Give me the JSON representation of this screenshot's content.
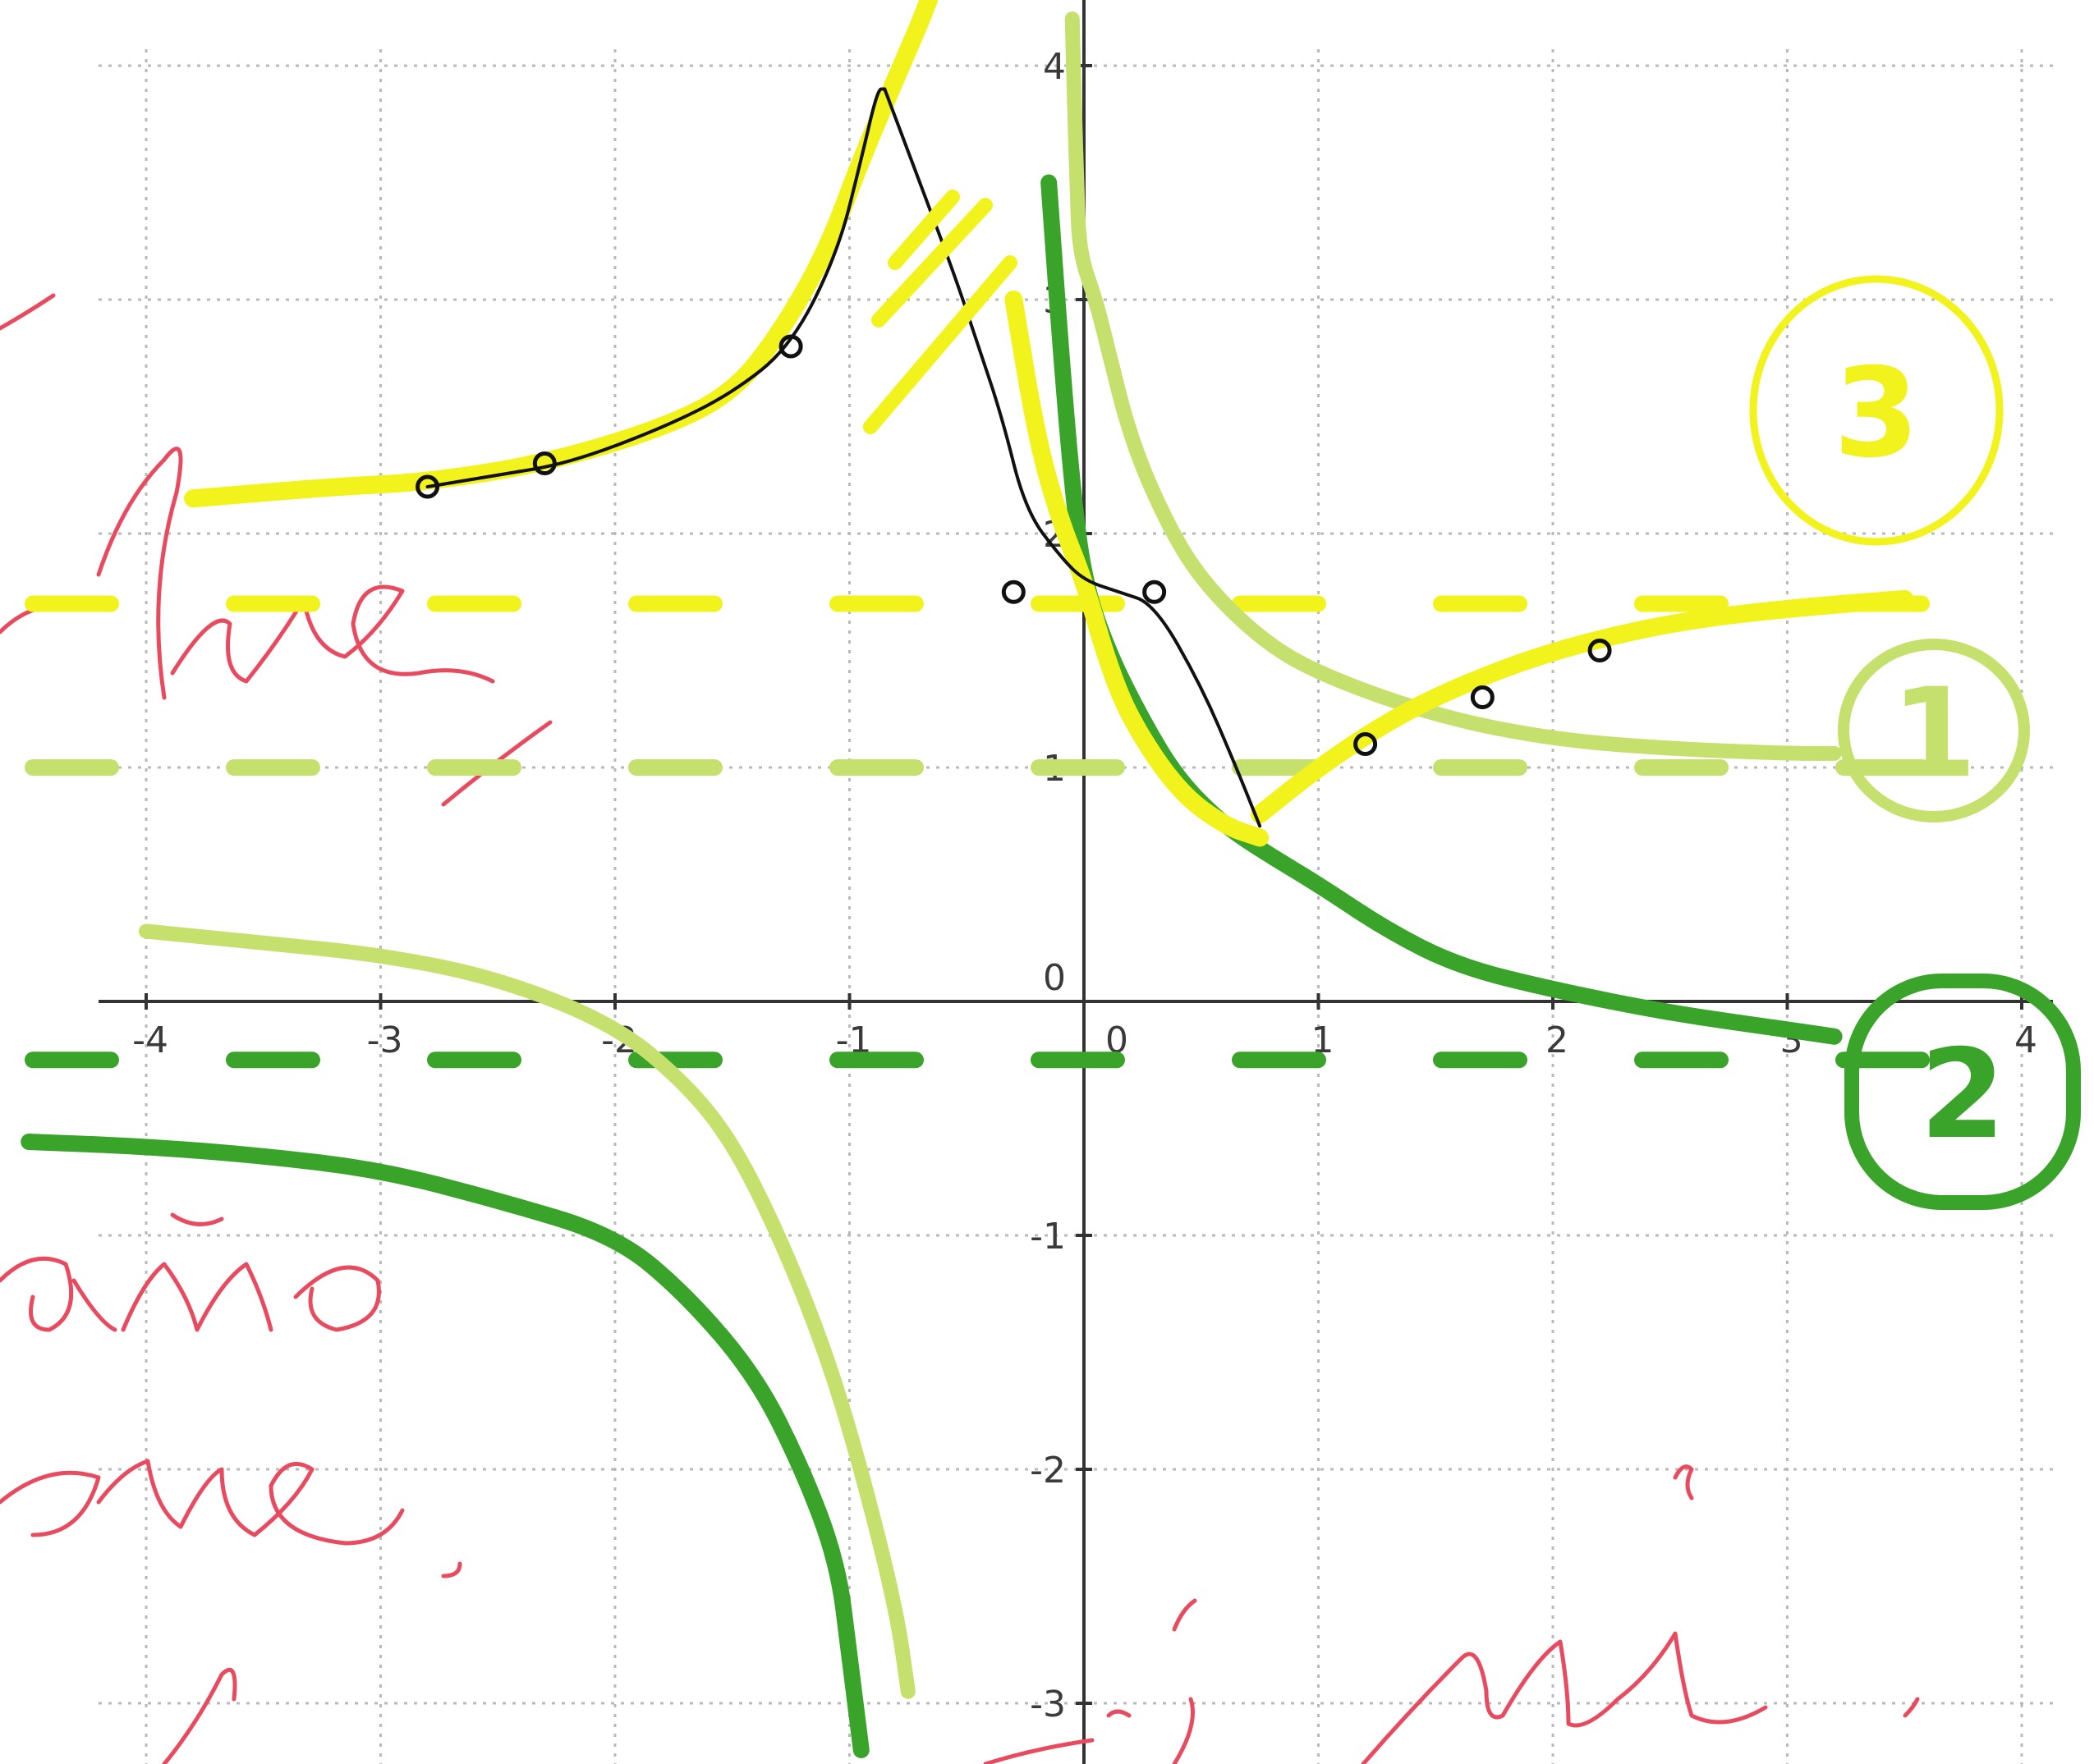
{
  "chart_data": {
    "type": "line",
    "xlim": [
      -4,
      4
    ],
    "ylim": [
      -3,
      4
    ],
    "grid": true,
    "grid_style": "dotted",
    "x_ticks": [
      -4,
      -3,
      -2,
      -1,
      0,
      1,
      2,
      3,
      4
    ],
    "y_ticks": [
      -3,
      -2,
      -1,
      0,
      1,
      2,
      3,
      4
    ],
    "x_tick_labels": [
      "-4",
      "-3",
      "-2",
      "-1",
      "0",
      "1",
      "2",
      "3",
      "4"
    ],
    "y_tick_labels": [
      "-3",
      "-2",
      "-1",
      "0",
      "1",
      "2",
      "3",
      "4"
    ],
    "series": [
      {
        "color": "#c5e06c",
        "asymptote_y": 1,
        "branches": [
          {
            "x": [
              -0.05,
              -0.04,
              -0.03,
              -0.02,
              0.05,
              0.1,
              0.2,
              0.35,
              0.5,
              0.75,
              1.0,
              1.5,
              2.0,
              2.5,
              3.0,
              3.2
            ],
            "y": [
              4.2,
              3.8,
              3.5,
              3.2,
              3.0,
              2.8,
              2.4,
              2.05,
              1.8,
              1.55,
              1.4,
              1.22,
              1.12,
              1.08,
              1.06,
              1.06
            ]
          },
          {
            "x": [
              -4.0,
              -3.5,
              -3.0,
              -2.5,
              -2.0,
              -1.7,
              -1.5,
              -1.3,
              -1.1,
              -0.95,
              -0.8,
              -0.75
            ],
            "y": [
              0.3,
              0.25,
              0.2,
              0.1,
              -0.1,
              -0.35,
              -0.6,
              -1.0,
              -1.5,
              -2.0,
              -2.6,
              -2.95
            ]
          }
        ]
      },
      {
        "color": "#3aa32a",
        "asymptote_y": -0.25,
        "branches": [
          {
            "x": [
              -0.15,
              -0.1,
              -0.05,
              0.0,
              0.1,
              0.25,
              0.4,
              0.6,
              0.8,
              1.0,
              1.3,
              1.6,
              2.0,
              2.5,
              3.0,
              3.2
            ],
            "y": [
              3.5,
              2.8,
              2.2,
              1.8,
              1.5,
              1.2,
              0.95,
              0.75,
              0.62,
              0.5,
              0.3,
              0.15,
              0.05,
              -0.05,
              -0.12,
              -0.15
            ]
          },
          {
            "x": [
              -4.5,
              -4.0,
              -3.5,
              -3.0,
              -2.5,
              -2.0,
              -1.7,
              -1.4,
              -1.2,
              -1.05,
              -1.0,
              -0.95
            ],
            "y": [
              -0.6,
              -0.62,
              -0.66,
              -0.72,
              -0.85,
              -1.0,
              -1.25,
              -1.6,
              -2.0,
              -2.4,
              -2.8,
              -3.2
            ]
          }
        ]
      },
      {
        "color": "#f2f21c",
        "asymptote_y": 1.7,
        "branches": [
          {
            "x": [
              -3.8,
              -3.2,
              -2.8,
              -2.3,
              -1.8,
              -1.5,
              -1.3,
              -1.1,
              -0.95,
              -0.8,
              -0.65,
              -0.6
            ],
            "y": [
              2.15,
              2.2,
              2.22,
              2.3,
              2.45,
              2.6,
              2.85,
              3.2,
              3.6,
              3.95,
              4.3,
              4.5
            ]
          },
          {
            "x": [
              -0.3,
              -0.2,
              -0.1,
              0.0,
              0.1,
              0.2,
              0.4,
              0.6,
              0.75
            ],
            "y": [
              3.0,
              2.4,
              2.05,
              1.8,
              1.45,
              1.2,
              0.9,
              0.75,
              0.7
            ]
          },
          {
            "x": [
              0.75,
              1.0,
              1.3,
              1.6,
              2.0,
              2.5,
              3.0,
              3.5
            ],
            "y": [
              0.8,
              1.0,
              1.2,
              1.35,
              1.5,
              1.62,
              1.68,
              1.72
            ]
          }
        ]
      },
      {
        "color": "#111111",
        "branches": [
          {
            "x": [
              -2.8,
              -2.5,
              -2.2,
              -1.8,
              -1.5,
              -1.25,
              -1.05,
              -0.95,
              -0.88,
              -0.85
            ],
            "y": [
              2.2,
              2.25,
              2.3,
              2.45,
              2.6,
              2.8,
              3.2,
              3.6,
              3.9,
              3.9
            ]
          },
          {
            "x": [
              -0.85,
              -0.7,
              -0.55,
              -0.45,
              -0.35,
              -0.25,
              -0.1,
              0.0,
              0.15,
              0.3,
              0.5,
              0.65,
              0.75
            ],
            "y": [
              3.9,
              3.5,
              3.1,
              2.8,
              2.5,
              2.1,
              1.9,
              1.8,
              1.75,
              1.7,
              1.35,
              1.0,
              0.75
            ]
          }
        ],
        "points": [
          [
            -2.8,
            2.2
          ],
          [
            -2.3,
            2.3
          ],
          [
            -1.25,
            2.8
          ],
          [
            -0.3,
            1.75
          ],
          [
            0.3,
            1.75
          ],
          [
            1.2,
            1.1
          ],
          [
            1.7,
            1.3
          ],
          [
            2.2,
            1.5
          ]
        ]
      }
    ],
    "markers": {
      "yellow": "3",
      "light_green": "1",
      "dark_green": "2"
    }
  },
  "colors": {
    "yellow": "#f2f21c",
    "light_green": "#c5e06c",
    "dark_green": "#3aa32a",
    "ink": "#111111",
    "red_ink": "#e84a5f",
    "grid": "#b9b9b9",
    "axis": "#333333"
  }
}
